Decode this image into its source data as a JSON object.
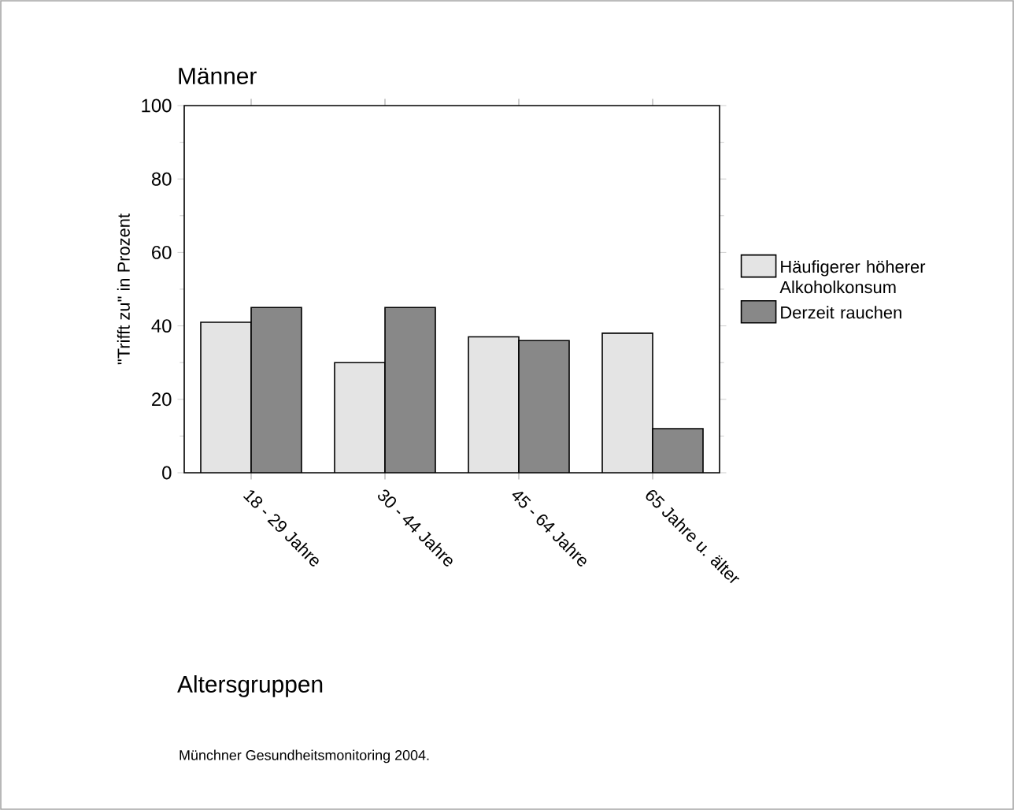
{
  "chart_data": {
    "type": "bar",
    "title": "Männer",
    "xlabel": "Altersgruppen",
    "ylabel": "\"Trifft zu\" in Prozent",
    "categories": [
      "18 - 29 Jahre",
      "30 - 44 Jahre",
      "45 - 64 Jahre",
      "65 Jahre u. älter"
    ],
    "series": [
      {
        "name": "Häufigerer höherer Alkoholkonsum",
        "color": "#e4e4e4",
        "values": [
          41,
          30,
          37,
          38
        ]
      },
      {
        "name": "Derzeit rauchen",
        "color": "#888888",
        "values": [
          45,
          45,
          36,
          12
        ]
      }
    ],
    "ylim": [
      0,
      100
    ],
    "yticks": [
      0,
      20,
      40,
      60,
      80,
      100
    ],
    "legend": "right",
    "annotations": [
      "Münchner Gesundheitsmonitoring 2004."
    ]
  }
}
